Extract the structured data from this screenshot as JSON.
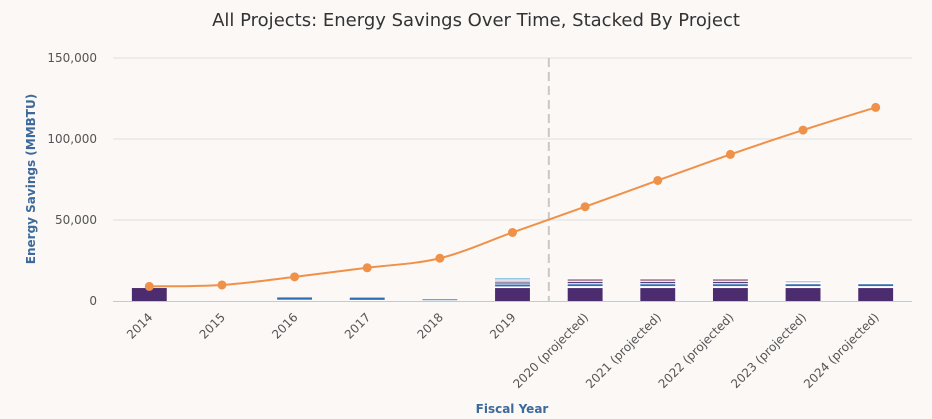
{
  "chart_data": {
    "type": "bar",
    "title": "All Projects: Energy Savings Over Time, Stacked By Project",
    "xlabel": "Fiscal Year",
    "ylabel": "Energy Savings (MMBTU)",
    "ylim": [
      0,
      150000
    ],
    "y_ticks": [
      0,
      50000,
      100000,
      150000
    ],
    "y_tick_labels": [
      "0",
      "50,000",
      "100,000",
      "150,000"
    ],
    "categories": [
      "2014",
      "2015",
      "2016",
      "2017",
      "2018",
      "2019",
      "2020 (projected)",
      "2021 (projected)",
      "2022 (projected)",
      "2023 (projected)",
      "2024 (projected)"
    ],
    "series": [
      {
        "color": "#4b2c6e",
        "values": [
          8000,
          0,
          0,
          0,
          0,
          8000,
          8000,
          8000,
          8000,
          8000,
          8000
        ]
      },
      {
        "color": "#ffffff",
        "values": [
          0,
          0,
          800,
          700,
          500,
          1000,
          1200,
          1200,
          1200,
          1200,
          1200
        ]
      },
      {
        "color": "#2f6eb5",
        "values": [
          0,
          0,
          1400,
          1400,
          600,
          1200,
          1200,
          1200,
          1200,
          1200,
          1200
        ]
      },
      {
        "color": "#ffffff",
        "values": [
          0,
          0,
          0,
          0,
          400,
          600,
          600,
          600,
          600,
          700,
          700
        ]
      },
      {
        "color": "#4b2c6e",
        "values": [
          0,
          0,
          0,
          0,
          0,
          700,
          700,
          700,
          700,
          0,
          0
        ]
      },
      {
        "color": "#ffffff",
        "values": [
          0,
          0,
          0,
          0,
          0,
          500,
          500,
          500,
          500,
          500,
          500
        ]
      },
      {
        "color": "#a9a1b3",
        "values": [
          0,
          0,
          0,
          0,
          0,
          600,
          600,
          600,
          600,
          600,
          0
        ]
      },
      {
        "color": "#8a2d3c",
        "values": [
          0,
          0,
          0,
          0,
          0,
          0,
          500,
          500,
          500,
          0,
          0
        ]
      },
      {
        "color": "#ffffff",
        "values": [
          0,
          0,
          0,
          0,
          0,
          600,
          700,
          700,
          700,
          700,
          0
        ]
      },
      {
        "color": "#8ec9e6",
        "values": [
          0,
          0,
          0,
          0,
          0,
          1000,
          0,
          0,
          0,
          0,
          0
        ]
      }
    ],
    "cumulative_line": {
      "color": "#f0914a",
      "values": [
        9000,
        9900,
        14900,
        20500,
        26400,
        42300,
        58200,
        74400,
        90500,
        105500,
        119500
      ]
    },
    "projection_divider": {
      "after_category": "2019"
    },
    "grid": true,
    "legend": "none"
  }
}
